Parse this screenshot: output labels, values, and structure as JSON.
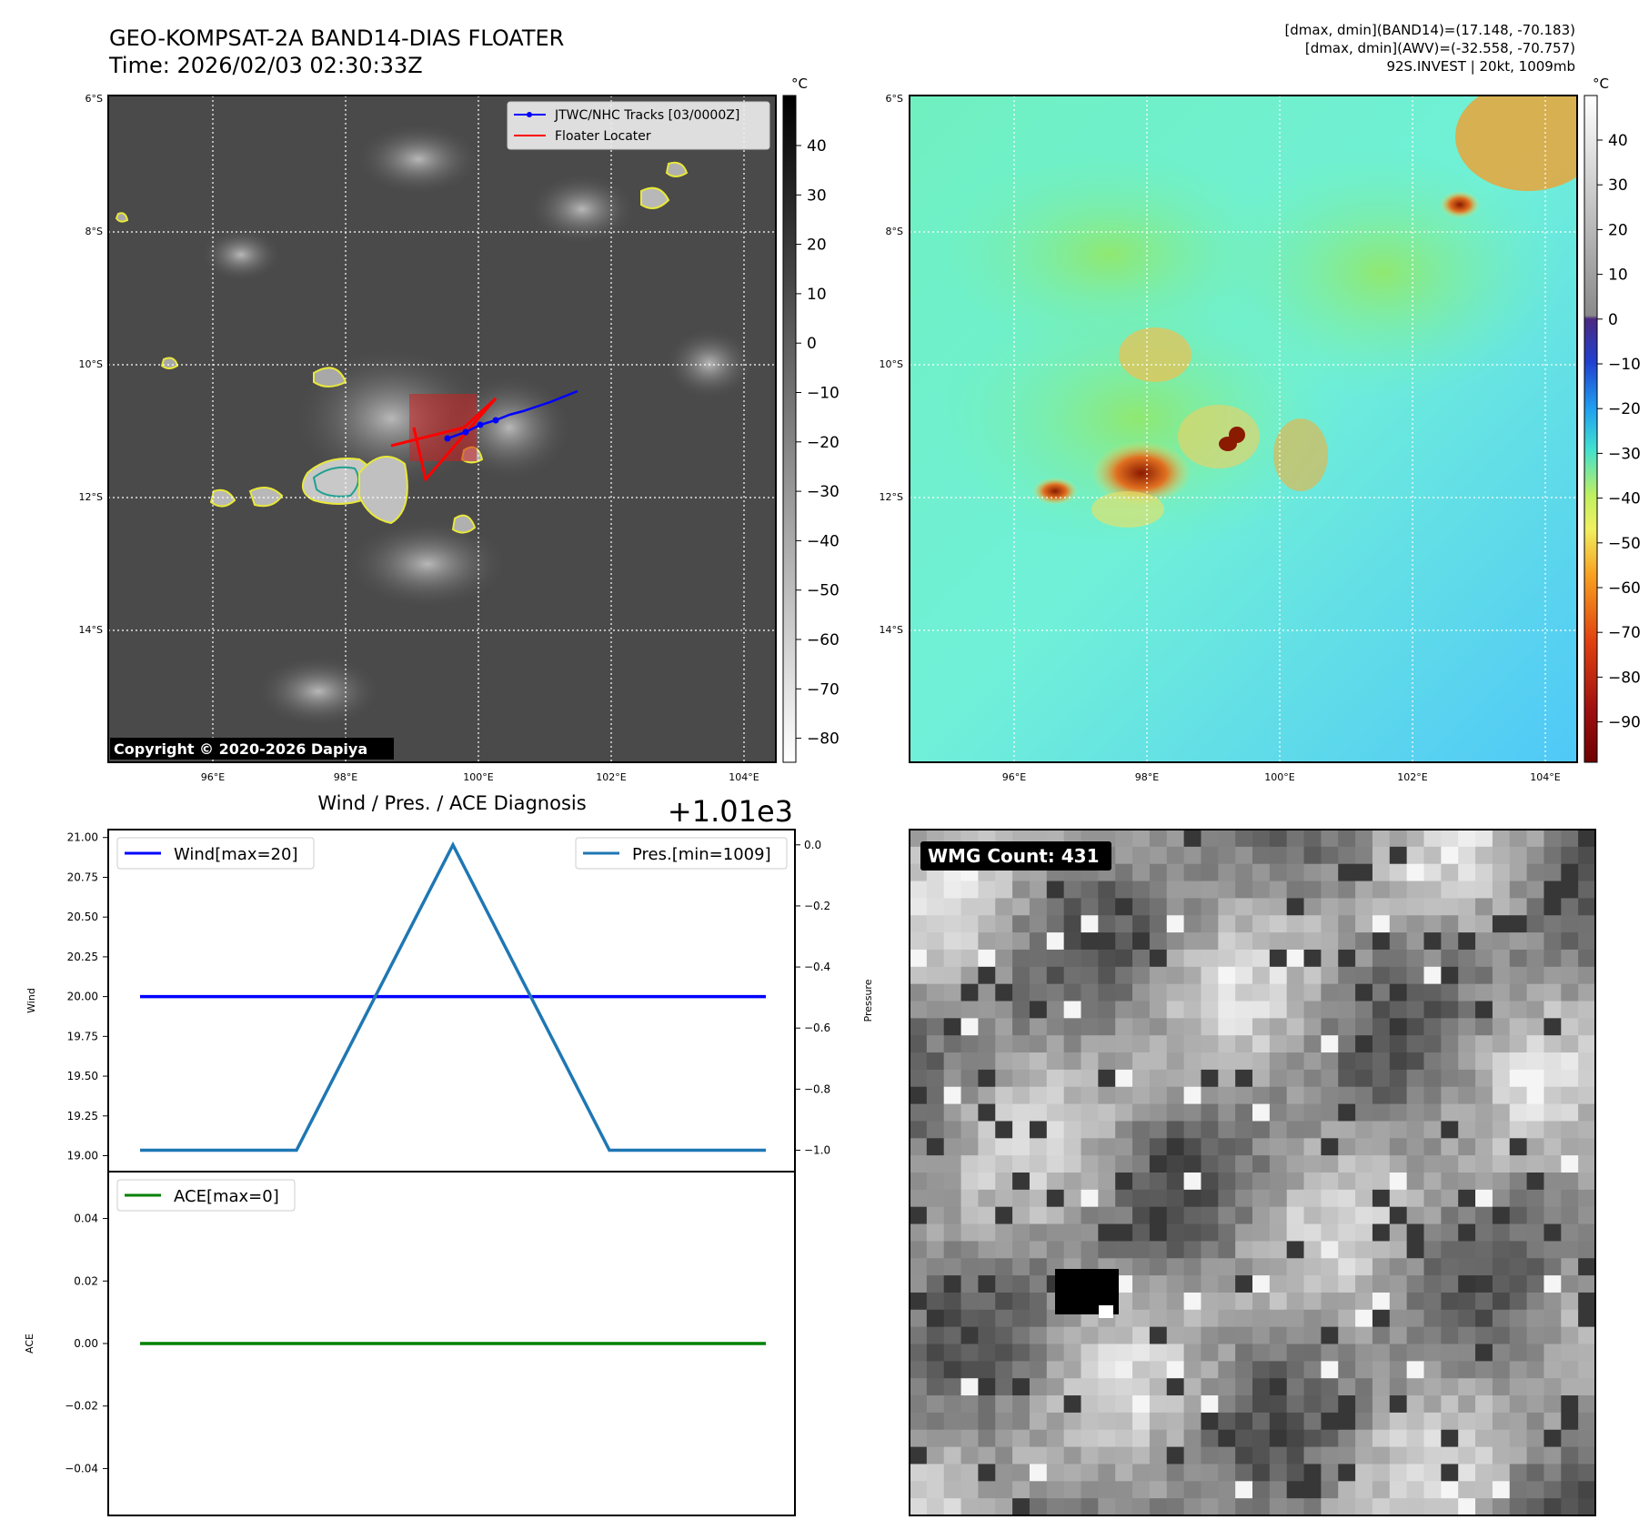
{
  "header": {
    "title_line1": "GEO-KOMPSAT-2A BAND14-DIAS FLOATER",
    "title_line2": "Time: 2026/02/03 02:30:33Z",
    "info_line1": "[dmax, dmin](BAND14)=(17.148, -70.183)",
    "info_line2": "[dmax, dmin](AWV)=(-32.558, -70.757)",
    "info_line3": "92S.INVEST | 20kt, 1009mb"
  },
  "maps": {
    "lat_labels": [
      "6°S",
      "8°S",
      "10°S",
      "12°S",
      "14°S"
    ],
    "lon_labels": [
      "96°E",
      "98°E",
      "100°E",
      "102°E",
      "104°E"
    ],
    "unit": "°C",
    "ir_colorbar_ticks": [
      "40",
      "30",
      "20",
      "10",
      "0",
      "−10",
      "−20",
      "−30",
      "−40",
      "−50",
      "−60",
      "−70",
      "−80"
    ],
    "awv_colorbar_ticks": [
      "40",
      "30",
      "20",
      "10",
      "0",
      "−10",
      "−20",
      "−30",
      "−40",
      "−50",
      "−60",
      "−70",
      "−80",
      "−90"
    ],
    "legend": {
      "tracks": "JTWC/NHC Tracks [03/0000Z]",
      "floater": "Floater Locater"
    },
    "copyright": "Copyright © 2020-2026 Dapiya",
    "colors": {
      "tracks": "#0000ff",
      "floater": "#ff0000",
      "contour_yellow": "#e8e83a",
      "contour_teal": "#20a090"
    }
  },
  "wmg": {
    "label": "WMG Count: 431"
  },
  "chart_data": [
    {
      "type": "line",
      "title": "Wind / Pres. / ACE Diagnosis",
      "offset_text": "+1.01e3",
      "ylabel": "Wind",
      "y2label": "Pressure",
      "ylim": [
        18.9,
        21.05
      ],
      "yticks": [
        "21.00",
        "20.75",
        "20.50",
        "20.25",
        "20.00",
        "19.75",
        "19.50",
        "19.25",
        "19.00"
      ],
      "y2ticks": [
        "0.0",
        "−0.2",
        "−0.4",
        "−0.6",
        "−0.8",
        "−1.0"
      ],
      "y2lim": [
        -1.07,
        0.05
      ],
      "x": [
        0,
        1,
        2,
        3,
        4
      ],
      "series": [
        {
          "name": "Wind[max=20]",
          "values": [
            20,
            20,
            20,
            20,
            20
          ],
          "color": "#0000ff",
          "axis": "left"
        },
        {
          "name": "Pres.[min=1009]",
          "values": [
            -1,
            -1,
            0,
            -1,
            -1
          ],
          "color": "#1f77b4",
          "axis": "right"
        }
      ]
    },
    {
      "type": "line",
      "ylabel": "ACE",
      "ylim": [
        -0.055,
        0.055
      ],
      "yticks": [
        "0.04",
        "0.02",
        "0.00",
        "−0.02",
        "−0.04"
      ],
      "x": [
        0,
        1,
        2,
        3,
        4
      ],
      "series": [
        {
          "name": "ACE[max=0]",
          "values": [
            0,
            0,
            0,
            0,
            0
          ],
          "color": "#008000",
          "axis": "left"
        }
      ]
    }
  ]
}
